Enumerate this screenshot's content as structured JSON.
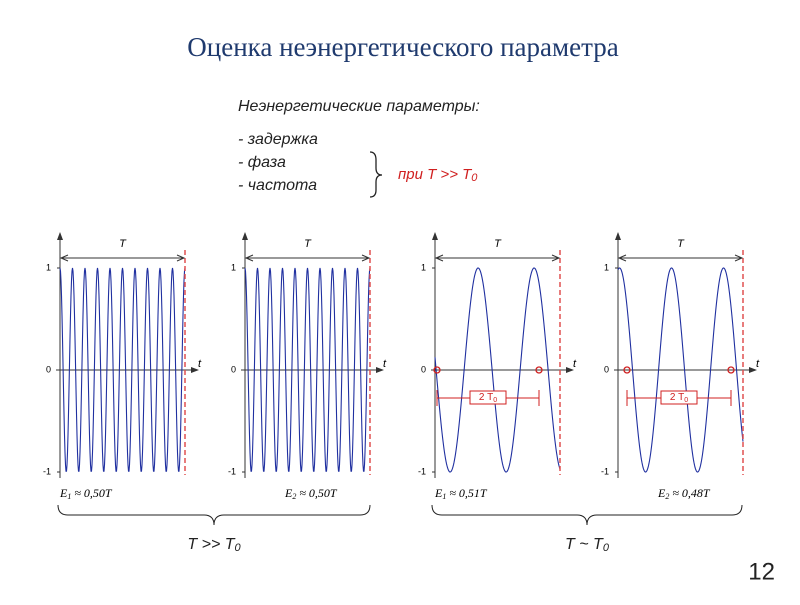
{
  "title": "Оценка неэнергетического параметра",
  "params": {
    "heading": "Неэнергетические параметры:",
    "items": [
      "- задержка",
      "- фаза",
      "- частота"
    ],
    "condition": {
      "text": "при T >> T",
      "sub": "0"
    }
  },
  "plots": [
    {
      "period_label": "T",
      "axis_label": "t",
      "yticks": [
        "1",
        "0",
        "-1"
      ],
      "energy": {
        "sym": "E",
        "sub": "1",
        "rest": " ≈ 0,50T"
      }
    },
    {
      "period_label": "T",
      "axis_label": "t",
      "yticks": [
        "1",
        "0",
        "-1"
      ],
      "energy": {
        "sym": "E",
        "sub": "2",
        "rest": " ≈ 0,50T"
      }
    },
    {
      "period_label": "T",
      "axis_label": "t",
      "yticks": [
        "1",
        "0",
        "-1"
      ],
      "energy": {
        "sym": "E",
        "sub": "1",
        "rest": " ≈ 0,51T"
      },
      "marker": {
        "text": "2 T",
        "sub": "0"
      }
    },
    {
      "period_label": "T",
      "axis_label": "t",
      "yticks": [
        "1",
        "0",
        "-1"
      ],
      "energy": {
        "sym": "E",
        "sub": "2",
        "rest": " ≈ 0,48T"
      },
      "marker": {
        "text": "2 T",
        "sub": "0"
      }
    }
  ],
  "groups": [
    {
      "text": "T >> T",
      "sub": "0"
    },
    {
      "text": "T  ~ T",
      "sub": "0"
    }
  ],
  "page_number": "12"
}
